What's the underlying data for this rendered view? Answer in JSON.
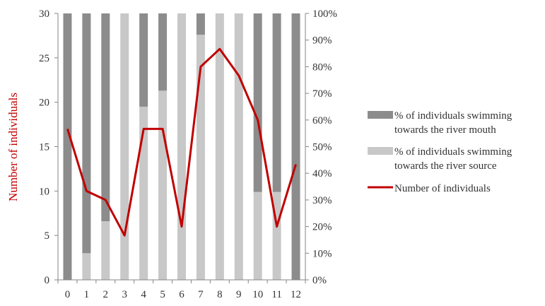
{
  "chart_data": {
    "type": "bar",
    "title": "",
    "xlabel": "",
    "ylabel": "Number of individuals",
    "ylim": [
      0,
      30
    ],
    "y2lim": [
      0,
      1
    ],
    "categories": [
      "0",
      "1",
      "2",
      "3",
      "4",
      "5",
      "6",
      "7",
      "8",
      "9",
      "10",
      "11",
      "12"
    ],
    "y_ticks": [
      "0",
      "5",
      "10",
      "15",
      "20",
      "25",
      "30"
    ],
    "y2_ticks": [
      "0%",
      "10%",
      "20%",
      "30%",
      "40%",
      "50%",
      "60%",
      "70%",
      "80%",
      "90%",
      "100%"
    ],
    "grid": false,
    "legend_position": "right",
    "series": [
      {
        "name": "% of individuals swimming towards the river mouth",
        "kind": "stacked-bar",
        "axis": "right",
        "color": "#8c8c8c",
        "values": [
          1.0,
          0.9,
          0.78,
          0.0,
          0.35,
          0.29,
          0.0,
          0.08,
          0.0,
          0.0,
          0.67,
          0.67,
          1.0
        ]
      },
      {
        "name": "% of individuals swimming towards the river source",
        "kind": "stacked-bar",
        "axis": "right",
        "color": "#c8c8c8",
        "values": [
          0.0,
          0.1,
          0.22,
          1.0,
          0.65,
          0.71,
          1.0,
          0.92,
          1.0,
          1.0,
          0.33,
          0.33,
          0.0
        ]
      },
      {
        "name": "Number of individuals",
        "kind": "line",
        "axis": "left",
        "color": "#c00000",
        "values": [
          17,
          10,
          9,
          5,
          17,
          17,
          6,
          24,
          26,
          23,
          18,
          6,
          13
        ]
      }
    ]
  }
}
